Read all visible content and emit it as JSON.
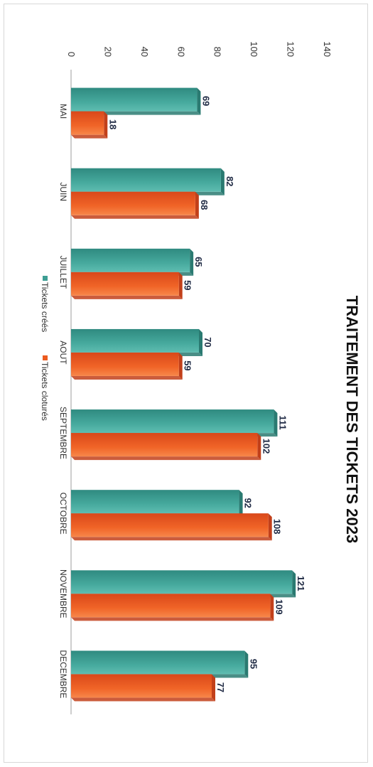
{
  "chart_data": {
    "type": "bar",
    "title": "TRAITEMENT DES TICKETS 2023",
    "categories": [
      "MAI",
      "JUIN",
      "JUILLET",
      "AOUT",
      "SEPTEMBRE",
      "OCTOBRE",
      "NOVEMBRE",
      "DECEMBRE"
    ],
    "series": [
      {
        "name": "Tickets créés",
        "values": [
          69,
          82,
          65,
          70,
          111,
          92,
          121,
          95
        ],
        "color": "#3e9e93"
      },
      {
        "name": "Tickets cloturés",
        "values": [
          18,
          68,
          59,
          59,
          102,
          108,
          109,
          77
        ],
        "color": "#ec5b1f"
      }
    ],
    "yticks": [
      0,
      20,
      40,
      60,
      80,
      100,
      120,
      140
    ],
    "ylim": [
      0,
      140
    ],
    "grid": false,
    "legend": "bottom",
    "orientation": "rotated-90"
  }
}
